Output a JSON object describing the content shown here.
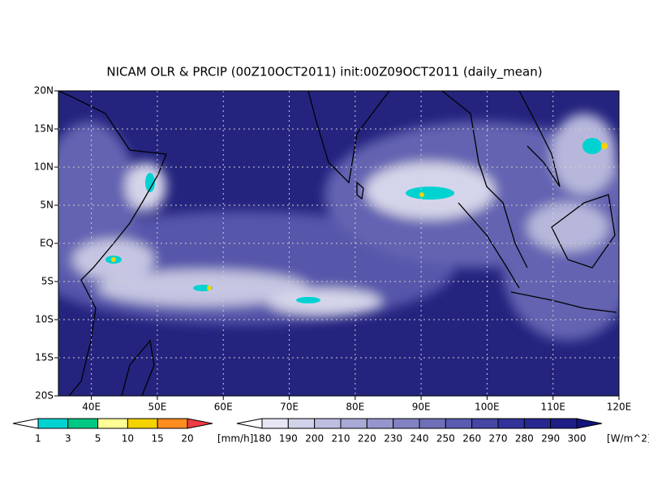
{
  "title": "NICAM OLR & PRCIP (00Z10OCT2011) init:00Z09OCT2011 (daily_mean)",
  "map": {
    "lat_labels": [
      "20N",
      "15N",
      "10N",
      "5N",
      "EQ",
      "5S",
      "10S",
      "15S",
      "20S"
    ],
    "lon_labels": [
      "40E",
      "50E",
      "60E",
      "70E",
      "80E",
      "90E",
      "100E",
      "110E",
      "120E"
    ]
  },
  "precip_colorbar": {
    "labels": [
      "1",
      "3",
      "5",
      "10",
      "15",
      "20"
    ],
    "unit": "[mm/h]",
    "colors": [
      "#ffffff",
      "#00d2d2",
      "#00c882",
      "#ffff96",
      "#f5d200",
      "#ff8c1e",
      "#f03c46"
    ]
  },
  "olr_colorbar": {
    "labels": [
      "180",
      "190",
      "200",
      "210",
      "220",
      "230",
      "240",
      "250",
      "260",
      "270",
      "280",
      "290",
      "300"
    ],
    "unit": "[W/m^2]",
    "colors": [
      "#ffffff",
      "#e6e6f5",
      "#d2d2eb",
      "#bebee1",
      "#aaaad7",
      "#9696cd",
      "#8282c3",
      "#6e6eb9",
      "#5a5aaf",
      "#4646a5",
      "#32329b",
      "#282891",
      "#1e1e87",
      "#14147d"
    ]
  }
}
